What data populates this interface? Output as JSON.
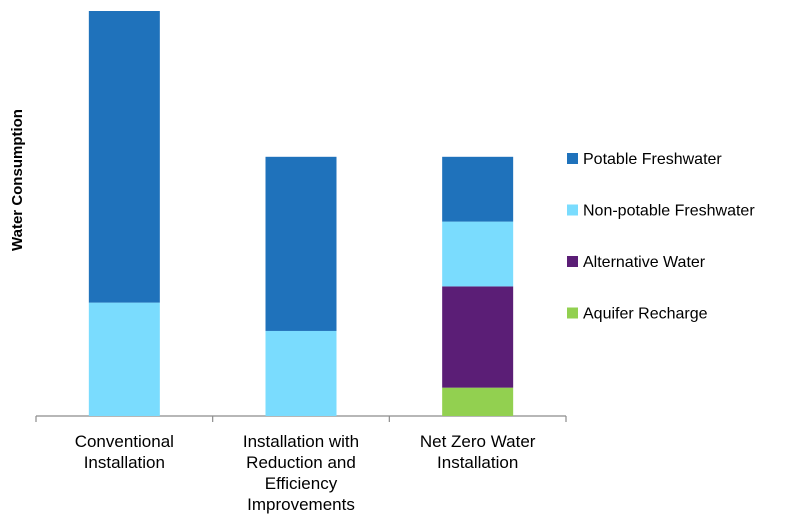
{
  "chart_data": {
    "type": "bar",
    "stacked": true,
    "title": "",
    "xlabel": "",
    "ylabel": "Water Consumption",
    "ylim": [
      0,
      100
    ],
    "grid": false,
    "legend_position": "right",
    "categories": [
      [
        "Conventional",
        "Installation"
      ],
      [
        "Installation with",
        "Reduction and",
        "Efficiency",
        "Improvements"
      ],
      [
        "Net Zero Water",
        "Installation"
      ]
    ],
    "series": [
      {
        "name": "Aquifer Recharge",
        "color": "#92D050",
        "values": [
          0,
          0,
          7
        ]
      },
      {
        "name": "Alternative Water",
        "color": "#5B1E76",
        "values": [
          0,
          0,
          25
        ]
      },
      {
        "name": "Non-potable Freshwater",
        "color": "#7ADCFE",
        "values": [
          28,
          21,
          16
        ]
      },
      {
        "name": "Potable Freshwater",
        "color": "#1F72BB",
        "values": [
          72,
          43,
          16
        ]
      }
    ],
    "legend_order": [
      "Potable Freshwater",
      "Non-potable Freshwater",
      "Alternative Water",
      "Aquifer Recharge"
    ]
  }
}
